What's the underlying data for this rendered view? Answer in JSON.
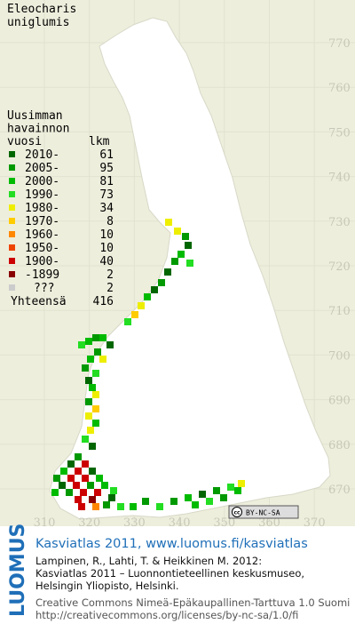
{
  "title_lines": [
    "Eleocharis",
    "uniglumis"
  ],
  "legend": {
    "header_lines": [
      "Uusimman",
      "havainnon",
      "vuosi"
    ],
    "count_header": "lkm",
    "rows": [
      {
        "label": "2010-",
        "count": 61,
        "color": "#006600"
      },
      {
        "label": "2005-",
        "count": 95,
        "color": "#009900"
      },
      {
        "label": "2000-",
        "count": 81,
        "color": "#00bb00"
      },
      {
        "label": "1990-",
        "count": 73,
        "color": "#22dd22"
      },
      {
        "label": "1980-",
        "count": 34,
        "color": "#eeee00"
      },
      {
        "label": "1970-",
        "count": 8,
        "color": "#ffcc00"
      },
      {
        "label": "1960-",
        "count": 10,
        "color": "#ff8800"
      },
      {
        "label": "1950-",
        "count": 10,
        "color": "#ee4400"
      },
      {
        "label": "1900-",
        "count": 40,
        "color": "#cc0000"
      },
      {
        "label": "-1899",
        "count": 2,
        "color": "#880000"
      },
      {
        "label": "???",
        "count": 2,
        "color": "#cccccc"
      }
    ],
    "total_label": "Yhteensä",
    "total": 416
  },
  "north_labels": [
    770,
    760,
    750,
    740,
    730,
    720,
    710,
    700,
    690,
    680,
    670
  ],
  "east_labels": [
    310,
    320,
    330,
    340,
    350,
    360,
    370
  ],
  "license_badge": {
    "icon": "cc",
    "text": "BY-NC-SA"
  },
  "footer": {
    "logo": "LUOMUS",
    "headline": "Kasviatlas 2011, www.luomus.fi/kasviatlas",
    "citation": [
      "Lampinen, R., Lahti, T. & Heikkinen M. 2012:",
      "Kasviatlas 2011 – Luonnontieteellinen keskusmuseo,",
      "Helsingin Yliopisto, Helsinki."
    ],
    "license": [
      "Creative Commons Nimeä-Epäkaupallinen-Tarttuva 1.0 Suomi",
      "http://creativecommons.org/licenses/by-nc-sa/1.0/fi"
    ]
  }
}
